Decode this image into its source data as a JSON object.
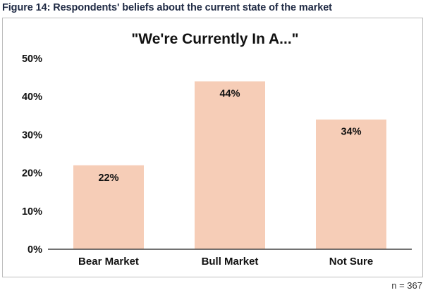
{
  "figure_caption": "Figure 14: Respondents' beliefs about the current state of the market",
  "sample_note": "n = 367",
  "colors": {
    "bar": "#f6cdb7",
    "axis": "#444444",
    "text": "#111111"
  },
  "chart_data": {
    "type": "bar",
    "title": "\"We're Currently In A...\"",
    "categories": [
      "Bear Market",
      "Bull Market",
      "Not Sure"
    ],
    "values": [
      22,
      44,
      34
    ],
    "data_labels": [
      "22%",
      "44%",
      "34%"
    ],
    "y_ticks": [
      "0%",
      "10%",
      "20%",
      "30%",
      "40%",
      "50%"
    ],
    "ylim": [
      0,
      50
    ],
    "grid": false,
    "legend": false
  }
}
